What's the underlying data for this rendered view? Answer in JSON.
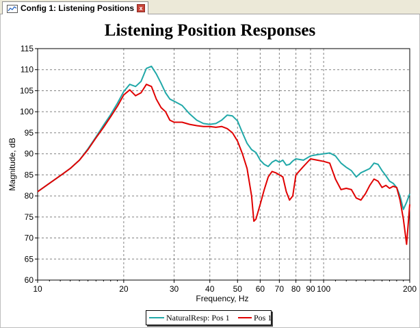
{
  "tab": {
    "label": "Config 1: Listening Positions",
    "close_glyph": "x",
    "icon": "chart-config-icon"
  },
  "chart_data": {
    "type": "line",
    "title": "Listening Position Responses",
    "xlabel": "Frequency, Hz",
    "ylabel": "Magnitude, dB",
    "xscale": "log",
    "xlim": [
      10,
      200
    ],
    "ylim": [
      60,
      115
    ],
    "xticks": [
      10,
      20,
      30,
      40,
      50,
      60,
      70,
      80,
      90,
      100,
      200
    ],
    "xtick_labels": [
      "10",
      "20",
      "30",
      "40",
      "50",
      "60",
      "70",
      "80",
      "90",
      "100",
      "200"
    ],
    "yticks": [
      60,
      65,
      70,
      75,
      80,
      85,
      90,
      95,
      100,
      105,
      110,
      115
    ],
    "ytick_labels": [
      "60",
      "65",
      "70",
      "75",
      "80",
      "85",
      "90",
      "95",
      "100",
      "105",
      "110",
      "115"
    ],
    "grid": true,
    "legend_position": "bottom-center",
    "series": [
      {
        "name": "NaturalResp: Pos 1",
        "color": "#20a8a8",
        "points": [
          [
            10,
            81.0
          ],
          [
            11,
            83.0
          ],
          [
            12,
            84.8
          ],
          [
            13,
            86.5
          ],
          [
            14,
            88.5
          ],
          [
            15,
            91.2
          ],
          [
            16,
            94.0
          ],
          [
            17,
            96.8
          ],
          [
            18,
            99.3
          ],
          [
            19,
            102.0
          ],
          [
            20,
            104.8
          ],
          [
            21,
            106.5
          ],
          [
            22,
            106.0
          ],
          [
            23,
            107.2
          ],
          [
            24,
            110.3
          ],
          [
            25,
            110.8
          ],
          [
            26,
            109.0
          ],
          [
            27,
            106.8
          ],
          [
            28,
            104.5
          ],
          [
            29,
            103.0
          ],
          [
            30,
            102.5
          ],
          [
            32,
            101.5
          ],
          [
            34,
            99.5
          ],
          [
            36,
            98.0
          ],
          [
            38,
            97.2
          ],
          [
            40,
            97.0
          ],
          [
            42,
            97.2
          ],
          [
            44,
            98.0
          ],
          [
            46,
            99.2
          ],
          [
            48,
            99.0
          ],
          [
            50,
            97.8
          ],
          [
            52,
            95.0
          ],
          [
            54,
            92.5
          ],
          [
            56,
            91.0
          ],
          [
            58,
            90.3
          ],
          [
            60,
            88.5
          ],
          [
            62,
            87.5
          ],
          [
            64,
            87.0
          ],
          [
            66,
            88.0
          ],
          [
            68,
            88.5
          ],
          [
            70,
            88.0
          ],
          [
            72,
            88.5
          ],
          [
            74,
            87.3
          ],
          [
            76,
            87.5
          ],
          [
            78,
            88.3
          ],
          [
            80,
            88.8
          ],
          [
            85,
            88.5
          ],
          [
            90,
            89.5
          ],
          [
            95,
            89.8
          ],
          [
            100,
            90.0
          ],
          [
            105,
            90.2
          ],
          [
            110,
            89.5
          ],
          [
            115,
            87.8
          ],
          [
            120,
            86.8
          ],
          [
            125,
            86.0
          ],
          [
            130,
            84.5
          ],
          [
            135,
            85.5
          ],
          [
            140,
            86.0
          ],
          [
            145,
            86.5
          ],
          [
            150,
            87.8
          ],
          [
            155,
            87.5
          ],
          [
            160,
            86.0
          ],
          [
            165,
            84.8
          ],
          [
            170,
            83.5
          ],
          [
            175,
            83.0
          ],
          [
            180,
            82.0
          ],
          [
            185,
            80.0
          ],
          [
            190,
            76.8
          ],
          [
            195,
            78.5
          ],
          [
            200,
            80.5
          ]
        ]
      },
      {
        "name": "Pos 1",
        "color": "#e00000",
        "points": [
          [
            10,
            81.0
          ],
          [
            11,
            83.0
          ],
          [
            12,
            84.8
          ],
          [
            13,
            86.5
          ],
          [
            14,
            88.5
          ],
          [
            15,
            91.0
          ],
          [
            16,
            93.8
          ],
          [
            17,
            96.3
          ],
          [
            18,
            98.8
          ],
          [
            19,
            101.3
          ],
          [
            20,
            104.0
          ],
          [
            21,
            105.2
          ],
          [
            22,
            103.8
          ],
          [
            23,
            104.5
          ],
          [
            24,
            106.5
          ],
          [
            25,
            106.0
          ],
          [
            26,
            103.0
          ],
          [
            27,
            101.0
          ],
          [
            28,
            100.0
          ],
          [
            29,
            98.0
          ],
          [
            30,
            97.5
          ],
          [
            32,
            97.5
          ],
          [
            34,
            97.0
          ],
          [
            36,
            96.7
          ],
          [
            38,
            96.5
          ],
          [
            40,
            96.5
          ],
          [
            42,
            96.3
          ],
          [
            44,
            96.5
          ],
          [
            46,
            96.0
          ],
          [
            48,
            95.0
          ],
          [
            50,
            93.0
          ],
          [
            52,
            90.0
          ],
          [
            54,
            86.5
          ],
          [
            56,
            80.0
          ],
          [
            57,
            74.0
          ],
          [
            58,
            74.5
          ],
          [
            60,
            78.0
          ],
          [
            62,
            81.5
          ],
          [
            64,
            84.5
          ],
          [
            66,
            85.8
          ],
          [
            68,
            85.5
          ],
          [
            70,
            85.0
          ],
          [
            72,
            84.5
          ],
          [
            74,
            81.0
          ],
          [
            76,
            79.0
          ],
          [
            78,
            80.0
          ],
          [
            80,
            85.0
          ],
          [
            85,
            87.0
          ],
          [
            90,
            88.8
          ],
          [
            95,
            88.5
          ],
          [
            100,
            88.2
          ],
          [
            105,
            87.8
          ],
          [
            110,
            84.0
          ],
          [
            115,
            81.5
          ],
          [
            120,
            81.8
          ],
          [
            125,
            81.5
          ],
          [
            130,
            79.5
          ],
          [
            135,
            79.0
          ],
          [
            140,
            80.5
          ],
          [
            145,
            82.5
          ],
          [
            150,
            84.0
          ],
          [
            155,
            83.5
          ],
          [
            160,
            82.0
          ],
          [
            165,
            82.5
          ],
          [
            170,
            81.8
          ],
          [
            175,
            82.3
          ],
          [
            180,
            82.0
          ],
          [
            185,
            79.0
          ],
          [
            190,
            74.5
          ],
          [
            195,
            68.5
          ],
          [
            200,
            78.0
          ]
        ]
      }
    ]
  }
}
